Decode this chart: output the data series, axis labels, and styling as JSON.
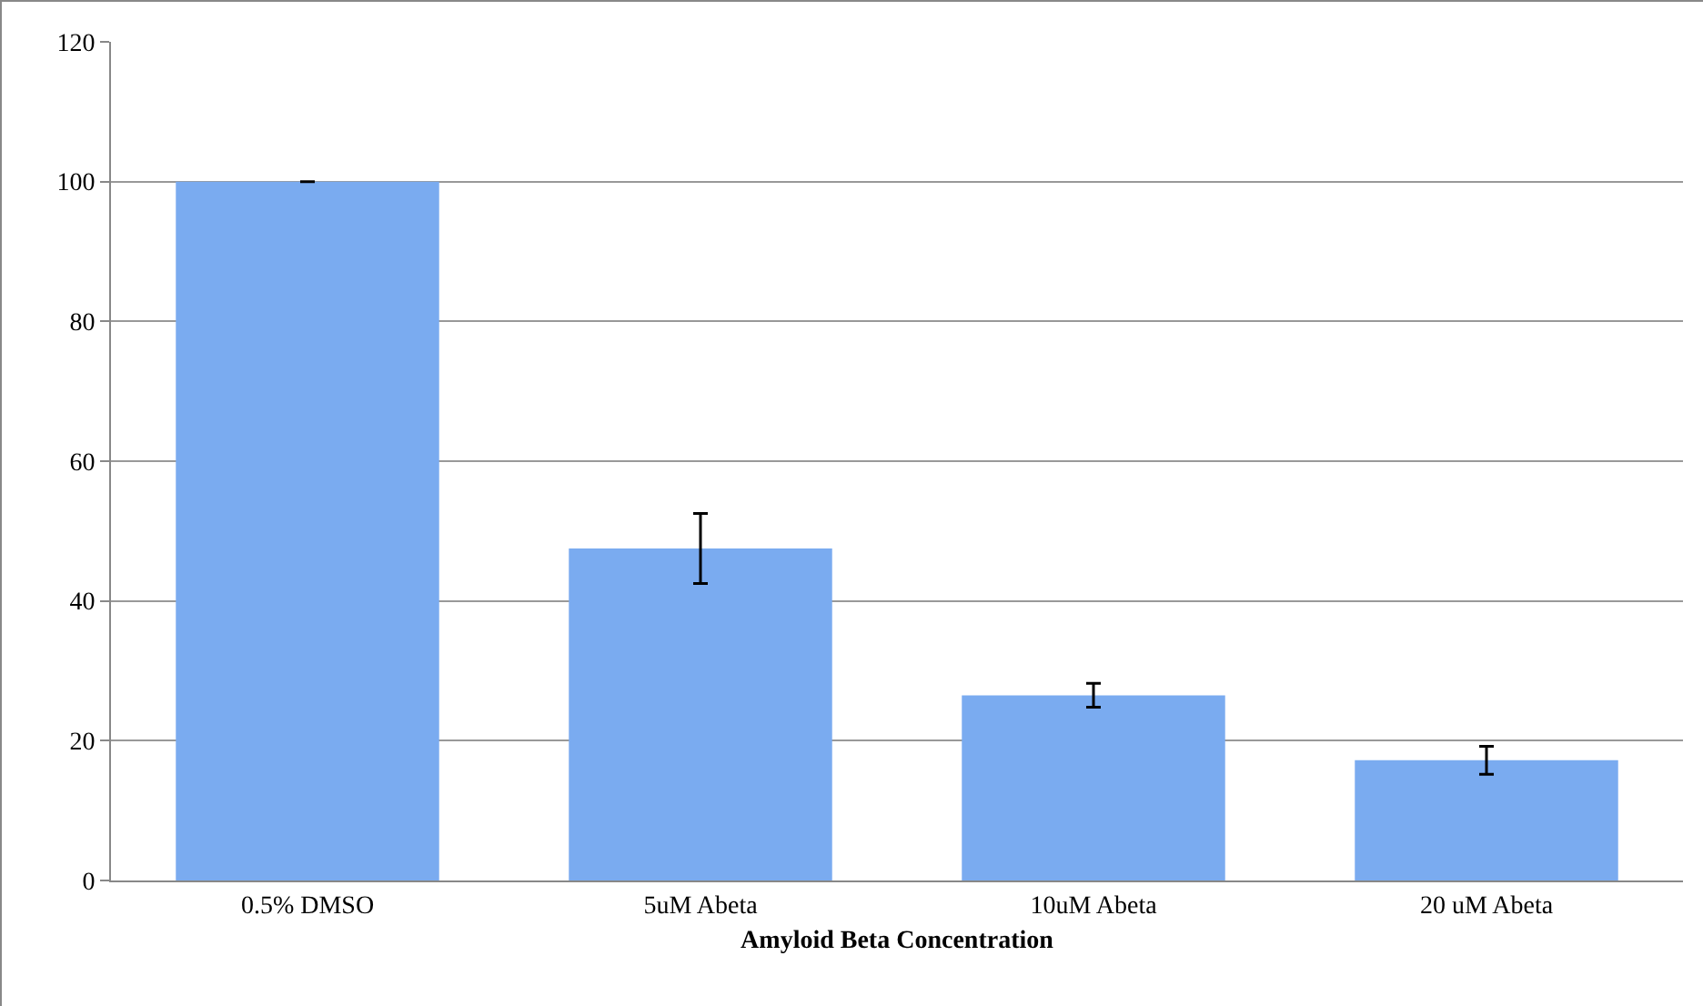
{
  "chart_data": {
    "type": "bar",
    "xlabel": "Amyloid Beta Concentration",
    "categories": [
      "0.5% DMSO",
      "5uM Abeta",
      "10uM Abeta",
      "20 uM Abeta"
    ],
    "values": [
      100,
      47.5,
      26.5,
      17.2
    ],
    "errors": [
      0,
      5,
      1.7,
      2
    ],
    "color": "#7aabf0",
    "ylim": [
      0,
      120
    ],
    "yticks": [
      0,
      20,
      40,
      60,
      80,
      100,
      120
    ],
    "grid": "y"
  }
}
